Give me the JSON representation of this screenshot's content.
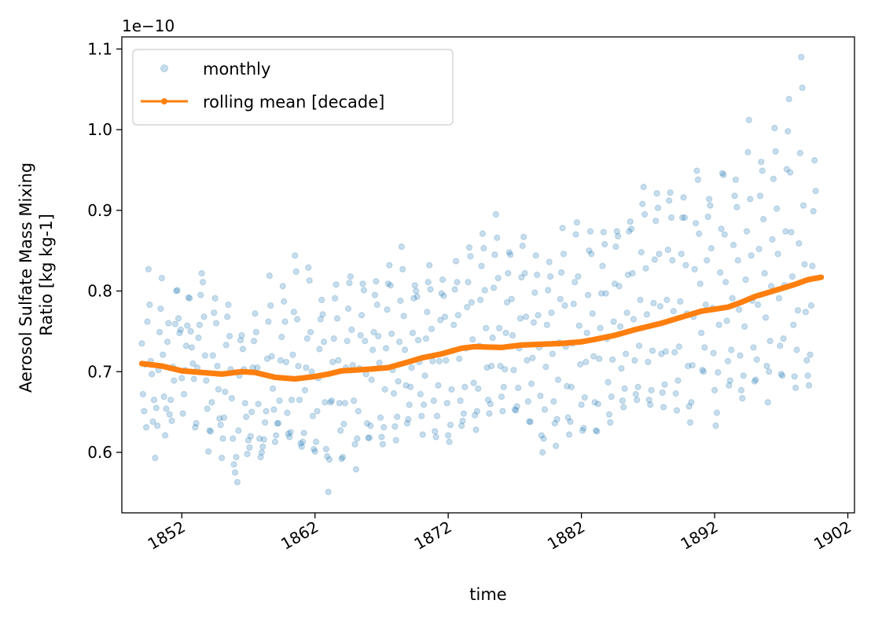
{
  "chart_data": {
    "type": "scatter",
    "title": "",
    "xlabel": "time",
    "ylabel_lines": [
      "Aerosol Sulfate Mass Mixing",
      "Ratio [kg kg-1]"
    ],
    "y_offset_text": "1e−10",
    "x_tick_labels": [
      "1852",
      "1862",
      "1872",
      "1882",
      "1892",
      "1902"
    ],
    "x_ticks": [
      1852,
      1862,
      1872,
      1882,
      1892,
      1902
    ],
    "y_tick_labels": [
      "0.6",
      "0.7",
      "0.8",
      "0.9",
      "1.0",
      "1.1"
    ],
    "y_ticks": [
      0.6,
      0.7,
      0.8,
      0.9,
      1.0,
      1.1
    ],
    "xlim": [
      1847.5,
      1902.5
    ],
    "ylim": [
      0.525,
      1.115
    ],
    "grid": false,
    "legend_position": "top-left",
    "series": [
      {
        "name": "monthly",
        "style": "markers",
        "color": "#1f77b4",
        "alpha": 0.25,
        "x_start": 1849.0,
        "x_step_months": 1,
        "values": [
          0.735,
          0.672,
          0.651,
          0.709,
          0.631,
          0.762,
          0.827,
          0.783,
          0.713,
          0.697,
          0.638,
          0.665,
          0.593,
          0.655,
          0.633,
          0.702,
          0.749,
          0.778,
          0.816,
          0.721,
          0.669,
          0.621,
          0.654,
          0.737,
          0.76,
          0.647,
          0.665,
          0.639,
          0.706,
          0.689,
          0.759,
          0.8,
          0.801,
          0.766,
          0.748,
          0.752,
          0.692,
          0.648,
          0.672,
          0.702,
          0.732,
          0.757,
          0.792,
          0.791,
          0.75,
          0.73,
          0.71,
          0.691,
          0.631,
          0.636,
          0.705,
          0.742,
          0.758,
          0.795,
          0.822,
          0.811,
          0.768,
          0.72,
          0.689,
          0.654,
          0.601,
          0.627,
          0.626,
          0.662,
          0.72,
          0.773,
          0.791,
          0.76,
          0.707,
          0.678,
          0.642,
          0.634,
          0.593,
          0.617,
          0.643,
          0.675,
          0.733,
          0.768,
          0.783,
          0.744,
          0.703,
          0.667,
          0.617,
          0.585,
          0.575,
          0.594,
          0.563,
          0.627,
          0.695,
          0.739,
          0.745,
          0.728,
          0.703,
          0.661,
          0.644,
          0.598,
          0.615,
          0.606,
          0.62,
          0.65,
          0.705,
          0.738,
          0.772,
          0.749,
          0.705,
          0.66,
          0.617,
          0.594,
          0.6,
          0.607,
          0.616,
          0.637,
          0.651,
          0.716,
          0.762,
          0.819,
          0.782,
          0.719,
          0.679,
          0.653,
          0.613,
          0.621,
          0.636,
          0.636,
          0.664,
          0.714,
          0.743,
          0.806,
          0.787,
          0.762,
          0.712,
          0.649,
          0.623,
          0.619,
          0.625,
          0.665,
          0.721,
          0.774,
          0.844,
          0.824,
          0.765,
          0.707,
          0.665,
          0.611,
          0.607,
          0.613,
          0.624,
          0.677,
          0.705,
          0.741,
          0.829,
          0.813,
          0.749,
          0.7,
          0.645,
          0.604,
          0.601,
          0.613,
          0.651,
          0.692,
          0.728,
          0.765,
          0.789,
          0.771,
          0.737,
          0.662,
          0.604,
          0.595,
          0.551,
          0.591,
          0.662,
          0.664,
          0.712,
          0.741,
          0.791,
          0.808,
          0.766,
          0.714,
          0.661,
          0.627,
          0.592,
          0.594,
          0.635,
          0.661,
          0.705,
          0.738,
          0.778,
          0.81,
          0.818,
          0.752,
          0.708,
          0.664,
          0.61,
          0.579,
          0.617,
          0.651,
          0.704,
          0.745,
          0.77,
          0.809,
          0.801,
          0.738,
          0.697,
          0.636,
          0.618,
          0.618,
          0.633,
          0.69,
          0.727,
          0.749,
          0.795,
          0.812,
          0.783,
          0.744,
          0.711,
          0.643,
          0.619,
          0.61,
          0.631,
          0.678,
          0.729,
          0.777,
          0.809,
          0.832,
          0.807,
          0.747,
          0.702,
          0.673,
          0.632,
          0.615,
          0.644,
          0.688,
          0.737,
          0.788,
          0.855,
          0.827,
          0.769,
          0.727,
          0.683,
          0.636,
          0.641,
          0.659,
          0.681,
          0.705,
          0.748,
          0.791,
          0.807,
          0.8,
          0.793,
          0.739,
          0.712,
          0.672,
          0.645,
          0.622,
          0.659,
          0.695,
          0.741,
          0.774,
          0.811,
          0.832,
          0.802,
          0.753,
          0.713,
          0.664,
          0.626,
          0.619,
          0.645,
          0.683,
          0.713,
          0.764,
          0.797,
          0.814,
          0.794,
          0.768,
          0.714,
          0.661,
          0.621,
          0.613,
          0.634,
          0.678,
          0.726,
          0.758,
          0.802,
          0.837,
          0.811,
          0.77,
          0.716,
          0.664,
          0.633,
          0.639,
          0.648,
          0.681,
          0.729,
          0.78,
          0.811,
          0.854,
          0.843,
          0.786,
          0.74,
          0.686,
          0.646,
          0.628,
          0.651,
          0.679,
          0.732,
          0.789,
          0.831,
          0.871,
          0.853,
          0.801,
          0.754,
          0.705,
          0.665,
          0.648,
          0.66,
          0.707,
          0.742,
          0.804,
          0.845,
          0.895,
          0.866,
          0.816,
          0.754,
          0.707,
          0.669,
          0.651,
          0.681,
          0.703,
          0.748,
          0.786,
          0.822,
          0.848,
          0.845,
          0.79,
          0.745,
          0.702,
          0.653,
          0.652,
          0.657,
          0.68,
          0.729,
          0.766,
          0.817,
          0.856,
          0.867,
          0.822,
          0.768,
          0.714,
          0.663,
          0.638,
          0.638,
          0.685,
          0.717,
          0.761,
          0.798,
          0.844,
          0.82,
          0.77,
          0.73,
          0.67,
          0.621,
          0.6,
          0.617,
          0.653,
          0.706,
          0.758,
          0.801,
          0.836,
          0.818,
          0.773,
          0.722,
          0.663,
          0.636,
          0.608,
          0.641,
          0.69,
          0.736,
          0.79,
          0.823,
          0.878,
          0.846,
          0.782,
          0.731,
          0.682,
          0.643,
          0.622,
          0.638,
          0.681,
          0.735,
          0.784,
          0.811,
          0.87,
          0.885,
          0.818,
          0.757,
          0.709,
          0.659,
          0.627,
          0.63,
          0.668,
          0.712,
          0.748,
          0.795,
          0.85,
          0.874,
          0.846,
          0.772,
          0.719,
          0.662,
          0.627,
          0.626,
          0.66,
          0.716,
          0.754,
          0.797,
          0.831,
          0.873,
          0.858,
          0.797,
          0.741,
          0.687,
          0.647,
          0.637,
          0.669,
          0.715,
          0.762,
          0.809,
          0.855,
          0.874,
          0.868,
          0.806,
          0.756,
          0.704,
          0.664,
          0.656,
          0.679,
          0.722,
          0.773,
          0.82,
          0.874,
          0.886,
          0.877,
          0.822,
          0.765,
          0.714,
          0.672,
          0.665,
          0.681,
          0.732,
          0.789,
          0.848,
          0.908,
          0.929,
          0.895,
          0.828,
          0.771,
          0.712,
          0.665,
          0.659,
          0.677,
          0.726,
          0.785,
          0.839,
          0.887,
          0.921,
          0.903,
          0.846,
          0.781,
          0.722,
          0.674,
          0.656,
          0.684,
          0.725,
          0.789,
          0.851,
          0.912,
          0.922,
          0.891,
          0.838,
          0.775,
          0.724,
          0.673,
          0.652,
          0.689,
          0.731,
          0.787,
          0.846,
          0.891,
          0.916,
          0.891,
          0.832,
          0.772,
          0.707,
          0.657,
          0.637,
          0.662,
          0.708,
          0.768,
          0.827,
          0.884,
          0.949,
          0.938,
          0.871,
          0.809,
          0.748,
          0.702,
          0.7,
          0.73,
          0.783,
          0.838,
          0.892,
          0.914,
          0.906,
          0.853,
          0.779,
          0.723,
          0.677,
          0.633,
          0.649,
          0.699,
          0.758,
          0.823,
          0.877,
          0.946,
          0.944,
          0.87,
          0.811,
          0.763,
          0.713,
          0.683,
          0.689,
          0.727,
          0.791,
          0.857,
          0.918,
          0.938,
          0.904,
          0.838,
          0.777,
          0.72,
          0.677,
          0.667,
          0.695,
          0.756,
          0.814,
          0.874,
          0.972,
          1.012,
          0.914,
          0.844,
          0.788,
          0.73,
          0.688,
          0.69,
          0.715,
          0.783,
          0.852,
          0.918,
          0.96,
          0.949,
          0.889,
          0.822,
          0.767,
          0.707,
          0.662,
          0.7,
          0.738,
          0.806,
          0.864,
          0.939,
          1.002,
          0.973,
          0.902,
          0.846,
          0.791,
          0.732,
          0.697,
          0.695,
          0.741,
          0.807,
          0.874,
          0.951,
          0.998,
          1.038,
          0.947,
          0.873,
          0.818,
          0.758,
          0.694,
          0.68,
          0.727,
          0.776,
          0.859,
          0.971,
          1.09,
          1.052,
          0.906,
          0.833,
          0.774,
          0.714,
          0.695,
          0.683,
          0.721,
          0.782,
          0.831,
          0.899,
          0.962,
          0.924
        ]
      },
      {
        "name": "rolling mean [decade]",
        "style": "line+markers",
        "color": "#ff7f0e",
        "x_start": 1849.0,
        "x_step_months": 1,
        "anchor_years": [
          1849.0,
          1850.5,
          1852.0,
          1853.5,
          1855.0,
          1856.5,
          1857.5,
          1859.0,
          1860.5,
          1862.0,
          1863.0,
          1864.0,
          1866.0,
          1867.5,
          1869.0,
          1870.0,
          1871.5,
          1873.0,
          1874.0,
          1876.0,
          1877.5,
          1879.0,
          1880.5,
          1882.0,
          1883.0,
          1884.5,
          1886.0,
          1888.0,
          1890.0,
          1891.0,
          1893.0,
          1894.0,
          1895.0,
          1896.0,
          1897.0,
          1898.0,
          1899.0,
          1900.0
        ],
        "anchor_values": [
          0.71,
          0.707,
          0.701,
          0.699,
          0.697,
          0.7,
          0.699,
          0.693,
          0.691,
          0.694,
          0.697,
          0.701,
          0.703,
          0.705,
          0.712,
          0.717,
          0.722,
          0.729,
          0.731,
          0.73,
          0.733,
          0.734,
          0.735,
          0.737,
          0.74,
          0.745,
          0.752,
          0.76,
          0.77,
          0.775,
          0.78,
          0.786,
          0.793,
          0.798,
          0.803,
          0.808,
          0.814,
          0.817
        ]
      }
    ]
  }
}
